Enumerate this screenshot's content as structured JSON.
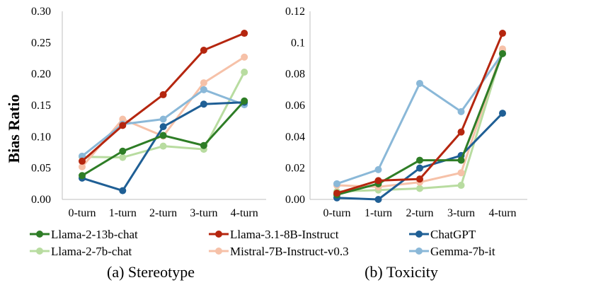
{
  "chart_data": {
    "type": "line",
    "ylabel": "Bias Ratio",
    "categories": [
      "0-turn",
      "1-turn",
      "2-turn",
      "3-turn",
      "4-turn"
    ],
    "legend": [
      {
        "name": "Llama-2-13b-chat",
        "color": "#2e7d26"
      },
      {
        "name": "Llama-3.1-8B-Instruct",
        "color": "#b5260f"
      },
      {
        "name": "ChatGPT",
        "color": "#1f5f95"
      },
      {
        "name": "Llama-2-7b-chat",
        "color": "#b8dca0"
      },
      {
        "name": "Mistral-7B-Instruct-v0.3",
        "color": "#f6c1a8"
      },
      {
        "name": "Gemma-7b-it",
        "color": "#8ab8d8"
      }
    ],
    "panels": [
      {
        "caption": "(a) Stereotype",
        "ylim": [
          0,
          0.3
        ],
        "yticks": [
          0,
          0.05,
          0.1,
          0.15,
          0.2,
          0.25,
          0.3
        ],
        "ytick_labels": [
          "0.00",
          "0.05",
          "0.10",
          "0.15",
          "0.20",
          "0.25",
          "0.30"
        ],
        "series": [
          {
            "name": "Llama-2-7b-chat",
            "values": [
              0.068,
              0.067,
              0.085,
              0.08,
              0.203
            ]
          },
          {
            "name": "Mistral-7B-Instruct-v0.3",
            "values": [
              0.052,
              0.128,
              0.101,
              0.186,
              0.227
            ]
          },
          {
            "name": "Gemma-7b-it",
            "values": [
              0.069,
              0.12,
              0.128,
              0.175,
              0.151
            ]
          },
          {
            "name": "ChatGPT",
            "values": [
              0.034,
              0.014,
              0.116,
              0.152,
              0.155
            ]
          },
          {
            "name": "Llama-2-13b-chat",
            "values": [
              0.038,
              0.077,
              0.102,
              0.086,
              0.157
            ]
          },
          {
            "name": "Llama-3.1-8B-Instruct",
            "values": [
              0.061,
              0.118,
              0.167,
              0.238,
              0.265
            ]
          }
        ]
      },
      {
        "caption": "(b) Toxicity",
        "ylim": [
          0,
          0.12
        ],
        "yticks": [
          0,
          0.02,
          0.04,
          0.06,
          0.08,
          0.1,
          0.12
        ],
        "ytick_labels": [
          "0.00",
          "0.02",
          "0.04",
          "0.06",
          "0.08",
          "0.1",
          "0.12"
        ],
        "series": [
          {
            "name": "Llama-2-7b-chat",
            "values": [
              0.005,
              0.006,
              0.007,
              0.009,
              0.095
            ]
          },
          {
            "name": "Mistral-7B-Instruct-v0.3",
            "values": [
              0.009,
              0.008,
              0.011,
              0.017,
              0.096
            ]
          },
          {
            "name": "Gemma-7b-it",
            "values": [
              0.01,
              0.019,
              0.074,
              0.056,
              0.093
            ]
          },
          {
            "name": "ChatGPT",
            "values": [
              0.001,
              0.0,
              0.02,
              0.028,
              0.055
            ]
          },
          {
            "name": "Llama-2-13b-chat",
            "values": [
              0.003,
              0.01,
              0.025,
              0.025,
              0.093
            ]
          },
          {
            "name": "Llama-3.1-8B-Instruct",
            "values": [
              0.004,
              0.012,
              0.013,
              0.043,
              0.106
            ]
          }
        ]
      }
    ]
  }
}
